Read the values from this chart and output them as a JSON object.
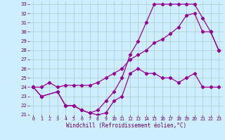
{
  "xlabel": "Windchill (Refroidissement éolien,°C)",
  "xlim": [
    -0.5,
    23.5
  ],
  "ylim": [
    21,
    33.3
  ],
  "xticks": [
    0,
    1,
    2,
    3,
    4,
    5,
    6,
    7,
    8,
    9,
    10,
    11,
    12,
    13,
    14,
    15,
    16,
    17,
    18,
    19,
    20,
    21,
    22,
    23
  ],
  "yticks": [
    21,
    22,
    23,
    24,
    25,
    26,
    27,
    28,
    29,
    30,
    31,
    32,
    33
  ],
  "background_color": "#cceeff",
  "grid_color": "#aacccc",
  "line_color": "#990099",
  "line1_x": [
    0,
    1,
    3,
    4,
    5,
    6,
    7,
    8,
    9,
    10,
    11,
    12,
    13,
    14,
    15,
    16,
    17,
    18,
    19,
    20,
    21,
    22,
    23
  ],
  "line1_y": [
    24,
    23,
    23.5,
    22,
    22,
    21.5,
    21.2,
    21,
    21.2,
    22.5,
    23,
    25.5,
    26,
    25.5,
    25.5,
    25,
    25,
    24.5,
    25,
    25.5,
    24,
    24,
    24
  ],
  "line2_x": [
    0,
    1,
    3,
    4,
    5,
    6,
    7,
    8,
    9,
    10,
    11,
    12,
    13,
    14,
    15,
    16,
    17,
    18,
    19,
    20,
    21,
    22,
    23
  ],
  "line2_y": [
    24,
    23,
    23.5,
    22,
    22,
    21.5,
    21.2,
    21.5,
    22.5,
    23.5,
    25,
    27.5,
    29,
    31,
    33,
    33,
    33,
    33,
    33,
    33,
    31.5,
    30,
    28
  ],
  "line3_x": [
    0,
    1,
    2,
    3,
    4,
    5,
    6,
    7,
    8,
    9,
    10,
    11,
    12,
    13,
    14,
    15,
    16,
    17,
    18,
    19,
    20,
    21,
    22,
    23
  ],
  "line3_y": [
    24,
    24,
    24.5,
    24,
    24.2,
    24.2,
    24.2,
    24.2,
    24.5,
    25,
    25.5,
    26,
    27,
    27.5,
    28,
    28.8,
    29.2,
    29.8,
    30.5,
    31.8,
    32,
    30,
    30,
    28
  ],
  "marker": "D",
  "markersize": 2.2,
  "linewidth": 0.9
}
